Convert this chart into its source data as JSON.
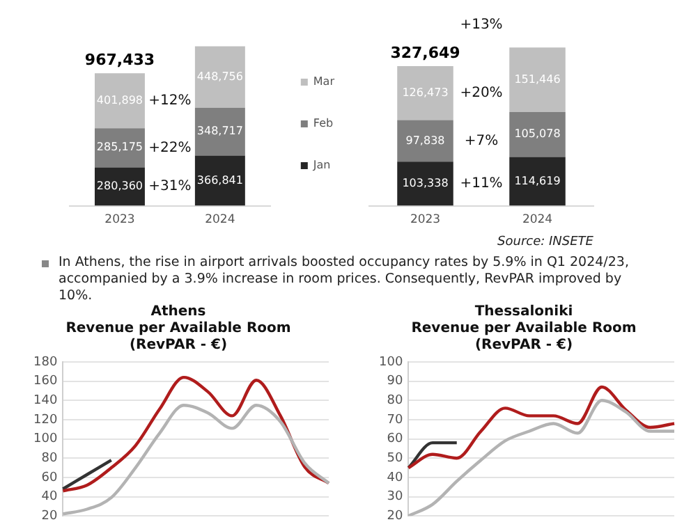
{
  "chart_data": [
    {
      "type": "bar",
      "stacked": true,
      "legend": "right",
      "categories": [
        "2023",
        "2024"
      ],
      "series": [
        {
          "name": "Jan",
          "color": "#262626",
          "values": [
            280360,
            366841
          ],
          "value_labels": [
            "280,360",
            "366,841"
          ]
        },
        {
          "name": "Feb",
          "color": "#7f7f7f",
          "values": [
            285175,
            348717
          ],
          "value_labels": [
            "285,175",
            "348,717"
          ]
        },
        {
          "name": "Mar",
          "color": "#bfbfbf",
          "values": [
            401898,
            448756
          ],
          "value_labels": [
            "401,898",
            "448,756"
          ]
        }
      ],
      "totals": [
        "967,433",
        null
      ],
      "annotations": [
        "+12%",
        "+22%",
        "+31%"
      ]
    },
    {
      "type": "bar",
      "stacked": true,
      "categories": [
        "2023",
        "2024"
      ],
      "series": [
        {
          "color": "#262626",
          "values": [
            103338,
            114619
          ],
          "value_labels": [
            "103,338",
            "114,619"
          ]
        },
        {
          "color": "#7f7f7f",
          "values": [
            97838,
            105078
          ],
          "value_labels": [
            "97,838",
            "105,078"
          ]
        },
        {
          "color": "#bfbfbf",
          "values": [
            126473,
            151446
          ],
          "value_labels": [
            "126,473",
            "151,446"
          ]
        }
      ],
      "totals": [
        "327,649",
        null
      ],
      "annotations": [
        "+20%",
        "+7%",
        "+11%",
        "+13%",
        "Source: INSETE",
        "In Athens, the rise in airport arrivals boosted occupancy rates by 5.9% in Q1 2024/23, accompanied by a 3.9% increase in room prices. Consequently, RevPAR improved by 10%."
      ]
    },
    {
      "type": "line",
      "title": "Athens\nRevenue per Available Room\n(RevPAR - €)",
      "categories": [
        null,
        null,
        null,
        null,
        null,
        null,
        null,
        null,
        null,
        null,
        null,
        null
      ],
      "ylim": [
        20,
        180
      ],
      "yticks": [
        20,
        40,
        60,
        80,
        100,
        120,
        140,
        160,
        180
      ],
      "grid": "y",
      "tick_labels": "y",
      "marker": "none",
      "series": [
        {
          "color": "#b3b3b3",
          "values": [
            22,
            27,
            39,
            70,
            106,
            135,
            127,
            111,
            135,
            118,
            75,
            54
          ]
        },
        {
          "color": "#b01c1c",
          "values": [
            46,
            52,
            70,
            93,
            131,
            164,
            149,
            124,
            161,
            124,
            71,
            54
          ]
        },
        {
          "color": "#333333",
          "values": [
            48,
            63,
            78,
            null,
            null,
            null,
            null,
            null,
            null,
            null,
            null,
            null
          ]
        }
      ]
    },
    {
      "type": "line",
      "title": "Thessaloniki\nRevenue per Available Room\n(RevPAR - €)",
      "categories": [
        null,
        null,
        null,
        null,
        null,
        null,
        null,
        null,
        null,
        null,
        null,
        null
      ],
      "ylim": [
        20,
        100
      ],
      "yticks": [
        20,
        30,
        40,
        50,
        60,
        70,
        80,
        90,
        100
      ],
      "grid": "y",
      "tick_labels": "y",
      "marker": "none",
      "series": [
        {
          "color": "#b3b3b3",
          "values": [
            20,
            26,
            38,
            49,
            59,
            64,
            68,
            63,
            80,
            74,
            64,
            64
          ]
        },
        {
          "color": "#b01c1c",
          "values": [
            45,
            52,
            50,
            64,
            76,
            72,
            72,
            68,
            87,
            75,
            66,
            68
          ]
        },
        {
          "color": "#333333",
          "values": [
            45,
            58,
            58,
            null,
            null,
            null,
            null,
            null,
            null,
            null,
            null,
            null
          ]
        }
      ]
    }
  ]
}
